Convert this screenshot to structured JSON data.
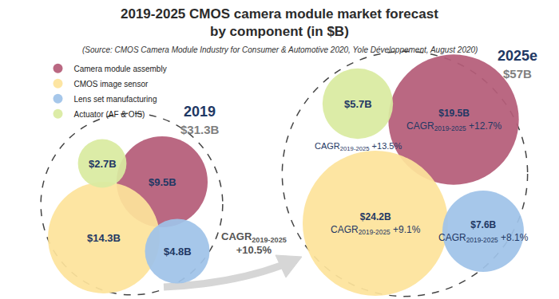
{
  "chart_data": {
    "type": "bubble",
    "title": "2019-2025 CMOS camera module market forecast\nby component (in $B)",
    "subtitle": "(Source: CMOS Camera Module Industry for Consumer & Automotive 2020, Yole Développement, August 2020)",
    "categories": [
      "2019",
      "2025e"
    ],
    "totals": [
      31.3,
      57
    ],
    "total_labels": [
      "$31.3B",
      "$57B"
    ],
    "cagr_text": "CAGR",
    "cagr_period": "2019-2025",
    "overall_cagr": 10.5,
    "overall_cagr_label": "+10.5%",
    "legend": "top left",
    "data_labels": true,
    "tick_labels": false,
    "series": [
      {
        "name": "Camera module assembly",
        "color": "#b55c78",
        "values": [
          9.5,
          19.5
        ],
        "value_labels": [
          "$9.5B",
          "$19.5B"
        ],
        "cagr": 12.7,
        "cagr_label": "+12.7%"
      },
      {
        "name": "CMOS image sensor",
        "color": "#fde39b",
        "values": [
          14.3,
          24.2
        ],
        "value_labels": [
          "$14.3B",
          "$24.2B"
        ],
        "cagr": 9.1,
        "cagr_label": "+9.1%"
      },
      {
        "name": "Lens set manufacturing",
        "color": "#9fc3e8",
        "values": [
          4.8,
          7.6
        ],
        "value_labels": [
          "$4.8B",
          "$7.6B"
        ],
        "cagr": 8.1,
        "cagr_label": "+8.1%"
      },
      {
        "name": "Actuator (AF & OIS)",
        "color": "#d9eba0",
        "values": [
          2.7,
          5.7
        ],
        "value_labels": [
          "$2.7B",
          "$5.7B"
        ],
        "cagr": 13.5,
        "cagr_label": "+13.5%"
      }
    ]
  }
}
